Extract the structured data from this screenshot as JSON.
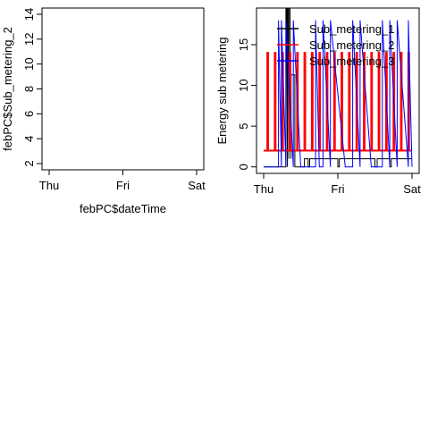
{
  "chart_data": [
    {
      "type": "line",
      "title": "",
      "xlabel": "febPC$dateTime",
      "ylabel": "febPC$Sub_metering_2",
      "x_ticks": [
        "Thu",
        "Fri",
        "Sat"
      ],
      "y_ticks": [
        2,
        4,
        6,
        8,
        10,
        12,
        14
      ],
      "xlim": [
        0,
        2
      ],
      "ylim": [
        1.5,
        14.5
      ],
      "grid": false,
      "series": []
    },
    {
      "type": "line",
      "title": "",
      "xlabel": "",
      "ylabel": "Energy sub metering",
      "x_ticks": [
        "Thu",
        "Fri",
        "Sat"
      ],
      "y_ticks": [
        0,
        5,
        10,
        15
      ],
      "xlim": [
        0,
        2
      ],
      "ylim": [
        -0.8,
        19.5
      ],
      "grid": false,
      "legend": {
        "position": "top-right",
        "entries": [
          "Sub_metering_1",
          "Sub_metering_2",
          "Sub_metering_3"
        ]
      },
      "colors": {
        "Sub_metering_1": "#000000",
        "Sub_metering_2": "#ff0000",
        "Sub_metering_3": "#0000ff"
      },
      "series": [
        {
          "name": "Sub_metering_1",
          "color": "#000000",
          "x": [
            0,
            0.3,
            0.3,
            0.32,
            0.32,
            0.34,
            0.34,
            0.37,
            0.37,
            0.42,
            0.42,
            0.55,
            0.55,
            0.6,
            0.6,
            0.62,
            0.62,
            1.0,
            1.0,
            1.02,
            1.02,
            1.5,
            1.5,
            1.53,
            1.53,
            1.7,
            1.7,
            1.72,
            1.72,
            2.0
          ],
          "y": [
            0,
            0,
            38,
            0,
            38,
            1,
            38,
            1,
            11.3,
            11.3,
            0,
            0,
            1,
            1,
            0,
            0,
            1,
            1,
            0,
            0,
            1,
            1,
            0,
            0,
            1,
            1,
            0,
            0,
            1,
            1
          ]
        },
        {
          "name": "Sub_metering_2",
          "color": "#ff0000",
          "x": [
            0,
            0.05,
            0.05,
            0.06,
            0.06,
            0.15,
            0.15,
            0.16,
            0.16,
            0.25,
            0.25,
            0.26,
            0.26,
            0.35,
            0.35,
            0.36,
            0.36,
            0.45,
            0.45,
            0.46,
            0.46,
            0.55,
            0.55,
            0.56,
            0.56,
            0.65,
            0.65,
            0.66,
            0.66,
            0.75,
            0.75,
            0.76,
            0.76,
            0.85,
            0.85,
            0.86,
            0.86,
            0.95,
            0.95,
            0.96,
            0.96,
            1.05,
            1.05,
            1.06,
            1.06,
            1.15,
            1.15,
            1.16,
            1.16,
            1.25,
            1.25,
            1.26,
            1.26,
            1.35,
            1.35,
            1.36,
            1.36,
            1.45,
            1.45,
            1.46,
            1.46,
            1.55,
            1.55,
            1.56,
            1.56,
            1.65,
            1.65,
            1.66,
            1.66,
            1.75,
            1.75,
            1.76,
            1.76,
            1.85,
            1.85,
            1.86,
            1.86,
            1.95,
            1.95,
            1.96,
            1.96,
            2.0
          ],
          "y": [
            2,
            2,
            14,
            14,
            2,
            2,
            14,
            14,
            2,
            2,
            14,
            14,
            2,
            2,
            14,
            14,
            2,
            2,
            14,
            14,
            2,
            2,
            14,
            14,
            2,
            2,
            14,
            14,
            2,
            2,
            14,
            14,
            2,
            2,
            14,
            14,
            2,
            2,
            14,
            14,
            2,
            2,
            14,
            14,
            2,
            2,
            14,
            14,
            2,
            2,
            14,
            14,
            2,
            2,
            14,
            14,
            2,
            2,
            14,
            14,
            2,
            2,
            14,
            14,
            2,
            2,
            14,
            14,
            2,
            2,
            14,
            14,
            2,
            2,
            14,
            14,
            2,
            2,
            14,
            14,
            2,
            2
          ]
        },
        {
          "name": "Sub_metering_3",
          "color": "#0000ff",
          "x": [
            0,
            0.2,
            0.2,
            0.24,
            0.24,
            0.3,
            0.3,
            0.4,
            0.4,
            0.5,
            0.5,
            0.7,
            0.7,
            0.75,
            0.75,
            0.8,
            0.8,
            0.9,
            0.9,
            1.1,
            1.1,
            1.2,
            1.2,
            1.3,
            1.3,
            1.45,
            1.45,
            1.6,
            1.6,
            1.7,
            1.7,
            1.8,
            1.8,
            1.95,
            1.95,
            2.0
          ],
          "y": [
            0,
            0,
            18,
            0,
            18,
            0,
            18,
            0,
            18,
            0,
            0,
            0,
            18,
            0,
            0,
            0,
            18,
            0,
            18,
            0,
            0,
            0,
            18,
            0,
            18,
            0,
            0,
            0,
            18,
            0,
            18,
            0,
            18,
            0,
            18,
            0
          ]
        }
      ]
    }
  ]
}
